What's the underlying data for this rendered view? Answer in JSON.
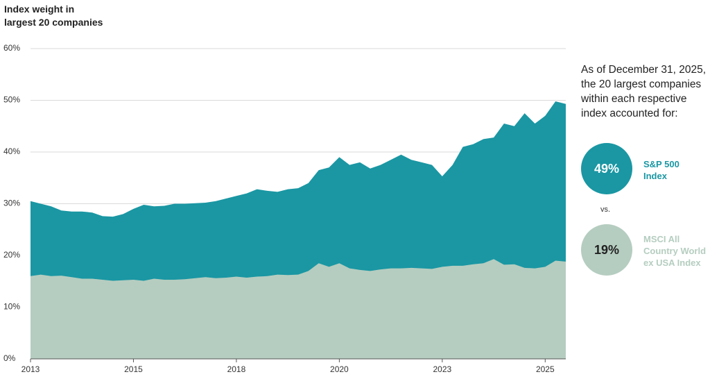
{
  "chart_data": {
    "type": "area",
    "y_label": "Index weight in\nlargest 20 companies",
    "x": [
      2013,
      2013.25,
      2013.5,
      2013.75,
      2014,
      2014.25,
      2014.5,
      2014.75,
      2015,
      2015.25,
      2015.5,
      2015.75,
      2016,
      2016.25,
      2016.5,
      2016.75,
      2017,
      2017.25,
      2017.5,
      2017.75,
      2018,
      2018.25,
      2018.5,
      2018.75,
      2019,
      2019.25,
      2019.5,
      2019.75,
      2020,
      2020.25,
      2020.5,
      2020.75,
      2021,
      2021.25,
      2021.5,
      2021.75,
      2022,
      2022.25,
      2022.5,
      2022.75,
      2023,
      2023.25,
      2023.5,
      2023.75,
      2024,
      2024.25,
      2024.5,
      2024.75,
      2025,
      2025.25,
      2025.5,
      2025.75,
      2026
    ],
    "series": [
      {
        "name": "S&P 500 Index",
        "color": "#1a97a3",
        "values": [
          30.5,
          30.0,
          29.5,
          28.7,
          28.5,
          28.5,
          28.3,
          27.6,
          27.5,
          28.0,
          29.0,
          29.8,
          29.5,
          29.6,
          30.0,
          30.0,
          30.1,
          30.2,
          30.5,
          31.0,
          31.5,
          32.0,
          32.8,
          32.5,
          32.3,
          32.8,
          33.0,
          34.0,
          36.5,
          37.0,
          39.0,
          37.5,
          38.0,
          36.8,
          37.5,
          38.5,
          39.5,
          38.5,
          38.0,
          37.5,
          35.3,
          37.5,
          41.0,
          41.5,
          42.5,
          42.8,
          45.5,
          45.0,
          47.5,
          45.5,
          47.0,
          49.8,
          49.3
        ]
      },
      {
        "name": "MSCI All Country World ex USA Index",
        "color": "#b5cdc0",
        "values": [
          16.0,
          16.3,
          16.0,
          16.1,
          15.8,
          15.5,
          15.5,
          15.3,
          15.1,
          15.2,
          15.3,
          15.1,
          15.5,
          15.3,
          15.3,
          15.4,
          15.6,
          15.8,
          15.6,
          15.7,
          15.9,
          15.7,
          15.9,
          16.0,
          16.3,
          16.2,
          16.3,
          17.0,
          18.5,
          17.8,
          18.5,
          17.5,
          17.2,
          17.0,
          17.3,
          17.5,
          17.5,
          17.6,
          17.5,
          17.4,
          17.8,
          18.0,
          18.0,
          18.3,
          18.5,
          19.3,
          18.2,
          18.3,
          17.6,
          17.5,
          17.8,
          19.0,
          18.8
        ]
      }
    ],
    "xlim": [
      2013,
      2026
    ],
    "xticks": [
      2013,
      {
        "value": 2015.5,
        "label": "2015"
      },
      2018,
      {
        "value": 2020.5,
        "label": "2020"
      },
      2023,
      {
        "value": 2025.5,
        "label": "2025"
      }
    ],
    "ylim": [
      0,
      60
    ],
    "yticks": [
      {
        "value": 0,
        "label": "0%"
      },
      {
        "value": 10,
        "label": "10%"
      },
      {
        "value": 20,
        "label": "20%"
      },
      {
        "value": 30,
        "label": "30%"
      },
      {
        "value": 40,
        "label": "40%"
      },
      {
        "value": 50,
        "label": "50%"
      },
      {
        "value": 60,
        "label": "60%"
      }
    ],
    "grid": true
  },
  "panel": {
    "note": "As of December 31, 2025,\nthe 20 largest companies\nwithin each respective\nindex accounted for:",
    "callouts": [
      {
        "value": "49%"
      },
      {
        "value": "19%"
      }
    ],
    "separator": "vs."
  }
}
